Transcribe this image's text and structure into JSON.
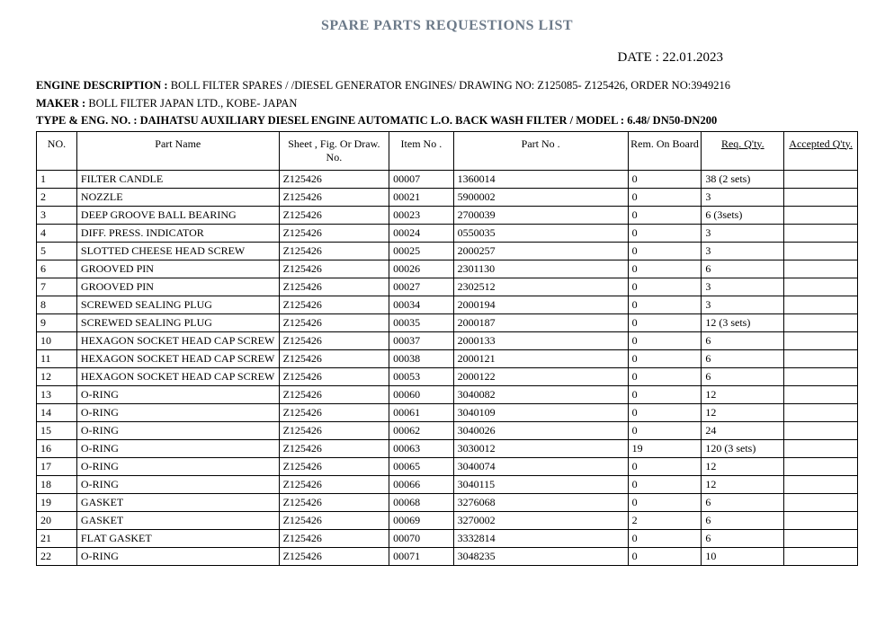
{
  "title": "SPARE PARTS REQUESTIONS LIST",
  "date_label": "DATE  :  ",
  "date_value": "22.01.2023",
  "meta": {
    "line1_label": "ENGINE DESCRIPTION : ",
    "line1_value": "BOLL FILTER SPARES /  /DIESEL GENERATOR ENGINES/ DRAWING NO: Z125085- Z125426, ORDER NO:3949216",
    "line2_label": "MAKER      : ",
    "line2_value": "BOLL FILTER JAPAN LTD., KOBE- JAPAN",
    "line3_label": "TYPE   &   ENG.  NO.    : ",
    "line3_value": "DAIHATSU AUXILIARY DIESEL ENGINE AUTOMATIC L.O. BACK WASH FILTER / MODEL : 6.48/ DN50-DN200"
  },
  "columns": {
    "no": "NO.",
    "part_name": "Part Name",
    "sheet": "Sheet , Fig. Or Draw. No.",
    "item_no": "Item No .",
    "part_no": "Part No .",
    "rem": "Rem. On Board",
    "req": "Req. Q'ty.",
    "acc": "Accepted Q'ty."
  },
  "rows": [
    {
      "no": "1",
      "name": "FILTER CANDLE",
      "sheet": "Z125426",
      "item": "00007",
      "part": "1360014",
      "rem": "0",
      "req": "38 (2 sets)",
      "acc": ""
    },
    {
      "no": "2",
      "name": "NOZZLE",
      "sheet": "Z125426",
      "item": "00021",
      "part": "5900002",
      "rem": "0",
      "req": "3",
      "acc": ""
    },
    {
      "no": "3",
      "name": "DEEP GROOVE BALL BEARING",
      "sheet": "Z125426",
      "item": "00023",
      "part": "2700039",
      "rem": "0",
      "req": "6 (3sets)",
      "acc": ""
    },
    {
      "no": "4",
      "name": "DIFF. PRESS. INDICATOR",
      "sheet": "Z125426",
      "item": "00024",
      "part": "0550035",
      "rem": "0",
      "req": "3",
      "acc": ""
    },
    {
      "no": "5",
      "name": "SLOTTED CHEESE HEAD SCREW",
      "sheet": "Z125426",
      "item": "00025",
      "part": "2000257",
      "rem": "0",
      "req": "3",
      "acc": ""
    },
    {
      "no": "6",
      "name": "GROOVED PIN",
      "sheet": "Z125426",
      "item": "00026",
      "part": "2301130",
      "rem": "0",
      "req": "6",
      "acc": ""
    },
    {
      "no": "7",
      "name": "GROOVED PIN",
      "sheet": "Z125426",
      "item": "00027",
      "part": "2302512",
      "rem": "0",
      "req": "3",
      "acc": ""
    },
    {
      "no": "8",
      "name": "SCREWED SEALING PLUG",
      "sheet": "Z125426",
      "item": "00034",
      "part": "2000194",
      "rem": "0",
      "req": "3",
      "acc": ""
    },
    {
      "no": "9",
      "name": "SCREWED SEALING PLUG",
      "sheet": "Z125426",
      "item": "00035",
      "part": "2000187",
      "rem": "0",
      "req": "12 (3 sets)",
      "acc": ""
    },
    {
      "no": "10",
      "name": "HEXAGON SOCKET HEAD CAP SCREW",
      "sheet": "Z125426",
      "item": "00037",
      "part": "2000133",
      "rem": "0",
      "req": "6",
      "acc": ""
    },
    {
      "no": "11",
      "name": "HEXAGON SOCKET HEAD CAP SCREW",
      "sheet": "Z125426",
      "item": "00038",
      "part": "2000121",
      "rem": "0",
      "req": "6",
      "acc": ""
    },
    {
      "no": "12",
      "name": "HEXAGON SOCKET HEAD CAP SCREW",
      "sheet": "Z125426",
      "item": "00053",
      "part": "2000122",
      "rem": "0",
      "req": "6",
      "acc": ""
    },
    {
      "no": "13",
      "name": "O-RING",
      "sheet": "Z125426",
      "item": "00060",
      "part": "3040082",
      "rem": "0",
      "req": "12",
      "acc": ""
    },
    {
      "no": "14",
      "name": "O-RING",
      "sheet": "Z125426",
      "item": "00061",
      "part": "3040109",
      "rem": "0",
      "req": "12",
      "acc": ""
    },
    {
      "no": "15",
      "name": "O-RING",
      "sheet": "Z125426",
      "item": "00062",
      "part": "3040026",
      "rem": "0",
      "req": "24",
      "acc": ""
    },
    {
      "no": "16",
      "name": "O-RING",
      "sheet": "Z125426",
      "item": "00063",
      "part": "3030012",
      "rem": "19",
      "req": "120 (3 sets)",
      "acc": ""
    },
    {
      "no": "17",
      "name": "O-RING",
      "sheet": "Z125426",
      "item": "00065",
      "part": "3040074",
      "rem": "0",
      "req": "12",
      "acc": ""
    },
    {
      "no": "18",
      "name": "O-RING",
      "sheet": "Z125426",
      "item": "00066",
      "part": "3040115",
      "rem": "0",
      "req": "12",
      "acc": ""
    },
    {
      "no": "19",
      "name": "GASKET",
      "sheet": "Z125426",
      "item": "00068",
      "part": "3276068",
      "rem": "0",
      "req": "6",
      "acc": ""
    },
    {
      "no": "20",
      "name": "GASKET",
      "sheet": "Z125426",
      "item": "00069",
      "part": "3270002",
      "rem": "2",
      "req": "6",
      "acc": ""
    },
    {
      "no": "21",
      "name": "FLAT GASKET",
      "sheet": "Z125426",
      "item": "00070",
      "part": "3332814",
      "rem": "0",
      "req": "6",
      "acc": ""
    },
    {
      "no": "22",
      "name": "O-RING",
      "sheet": "Z125426",
      "item": "00071",
      "part": "3048235",
      "rem": "0",
      "req": "10",
      "acc": ""
    }
  ]
}
